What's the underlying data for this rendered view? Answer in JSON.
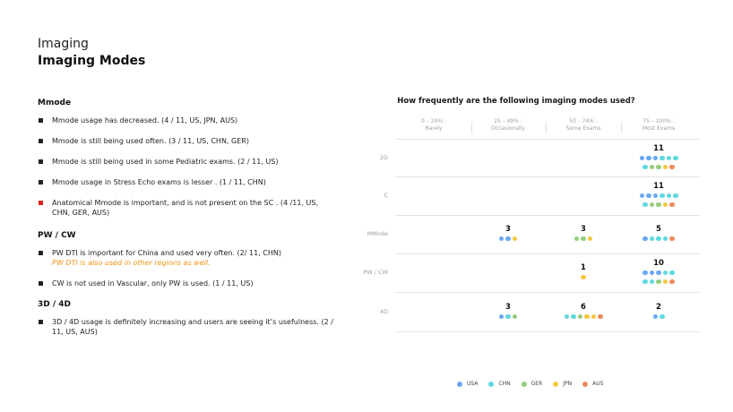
{
  "header": {
    "sup_title": "Imaging",
    "main_title": "Imaging Modes"
  },
  "left": {
    "sections": [
      {
        "title": "Mmode",
        "bullets": [
          {
            "text": "Mmode usage has decreased. (4 / 11, US, JPN, AUS)"
          },
          {
            "text": "Mmode is still being used often. (3 / 11, US, CHN, GER)"
          },
          {
            "text": "Mmode is still being used in some Pediatric exams. (2 / 11, US)"
          },
          {
            "text": "Mmode usage in Stress Echo exams is lesser . (1 / 11, CHN)"
          },
          {
            "text": "Anatomical Mmode is important, and is not present on the SC . (4 /11, US, CHN, GER, AUS)",
            "marker": "red"
          }
        ]
      },
      {
        "title": "PW / CW",
        "bullets": [
          {
            "text": "PW DTI is important for China and used very often. (2/ 11, CHN)",
            "note": "PW DTI is also used in other regions as well."
          },
          {
            "text": "CW is not used in Vascular, only PW is used. (1 / 11, US)"
          }
        ]
      },
      {
        "title": "3D / 4D",
        "bullets": [
          {
            "text": "3D / 4D usage is definitely increasing and users are seeing it’s usefulness. (2 / 11, US, AUS)"
          }
        ]
      }
    ]
  },
  "colors": {
    "USA": "#6aa8f2",
    "CHN": "#5ed9de",
    "GER": "#97cc7d",
    "JPN": "#f6c842",
    "AUS": "#ee8a5c",
    "bullet": "#222222",
    "bullet_red": "#e0201b",
    "note": "#f29418"
  },
  "chart_data": {
    "type": "table",
    "title": "How frequently are the following imaging modes used?",
    "columns": [
      {
        "range": "0 – 24% :",
        "label": "Rarely"
      },
      {
        "range": "25 – 49% :",
        "label": "Occasionally"
      },
      {
        "range": "50 – 74% :",
        "label": "Some Exams"
      },
      {
        "range": "75 – 100% :",
        "label": "Most Exams"
      }
    ],
    "rows": [
      {
        "label": "2D",
        "cells": [
          null,
          null,
          null,
          {
            "count": 11,
            "dots": [
              "USA",
              "USA",
              "USA",
              "CHN",
              "CHN",
              "CHN",
              "CHN",
              "GER",
              "GER",
              "JPN",
              "AUS"
            ]
          }
        ]
      },
      {
        "label": "C",
        "cells": [
          null,
          null,
          null,
          {
            "count": 11,
            "dots": [
              "USA",
              "USA",
              "USA",
              "CHN",
              "CHN",
              "CHN",
              "CHN",
              "GER",
              "GER",
              "JPN",
              "AUS"
            ]
          }
        ]
      },
      {
        "label": "MMode",
        "cells": [
          null,
          {
            "count": 3,
            "dots": [
              "USA",
              "USA",
              "JPN"
            ]
          },
          {
            "count": 3,
            "dots": [
              "GER",
              "GER",
              "JPN"
            ]
          },
          {
            "count": 5,
            "dots": [
              "USA",
              "CHN",
              "CHN",
              "CHN",
              "AUS"
            ]
          }
        ]
      },
      {
        "label": "PW / CW",
        "cells": [
          null,
          null,
          {
            "count": 1,
            "dots": [
              "JPN"
            ]
          },
          {
            "count": 10,
            "dots": [
              "USA",
              "USA",
              "USA",
              "CHN",
              "CHN",
              "CHN",
              "CHN",
              "GER",
              "JPN",
              "AUS"
            ]
          }
        ]
      },
      {
        "label": "4D",
        "cells": [
          null,
          {
            "count": 3,
            "dots": [
              "USA",
              "CHN",
              "GER"
            ]
          },
          {
            "count": 6,
            "dots": [
              "CHN",
              "CHN",
              "GER",
              "JPN",
              "JPN",
              "AUS"
            ]
          },
          {
            "count": 2,
            "dots": [
              "USA",
              "CHN"
            ]
          }
        ]
      }
    ],
    "legend": [
      "USA",
      "CHN",
      "GER",
      "JPN",
      "AUS"
    ]
  }
}
